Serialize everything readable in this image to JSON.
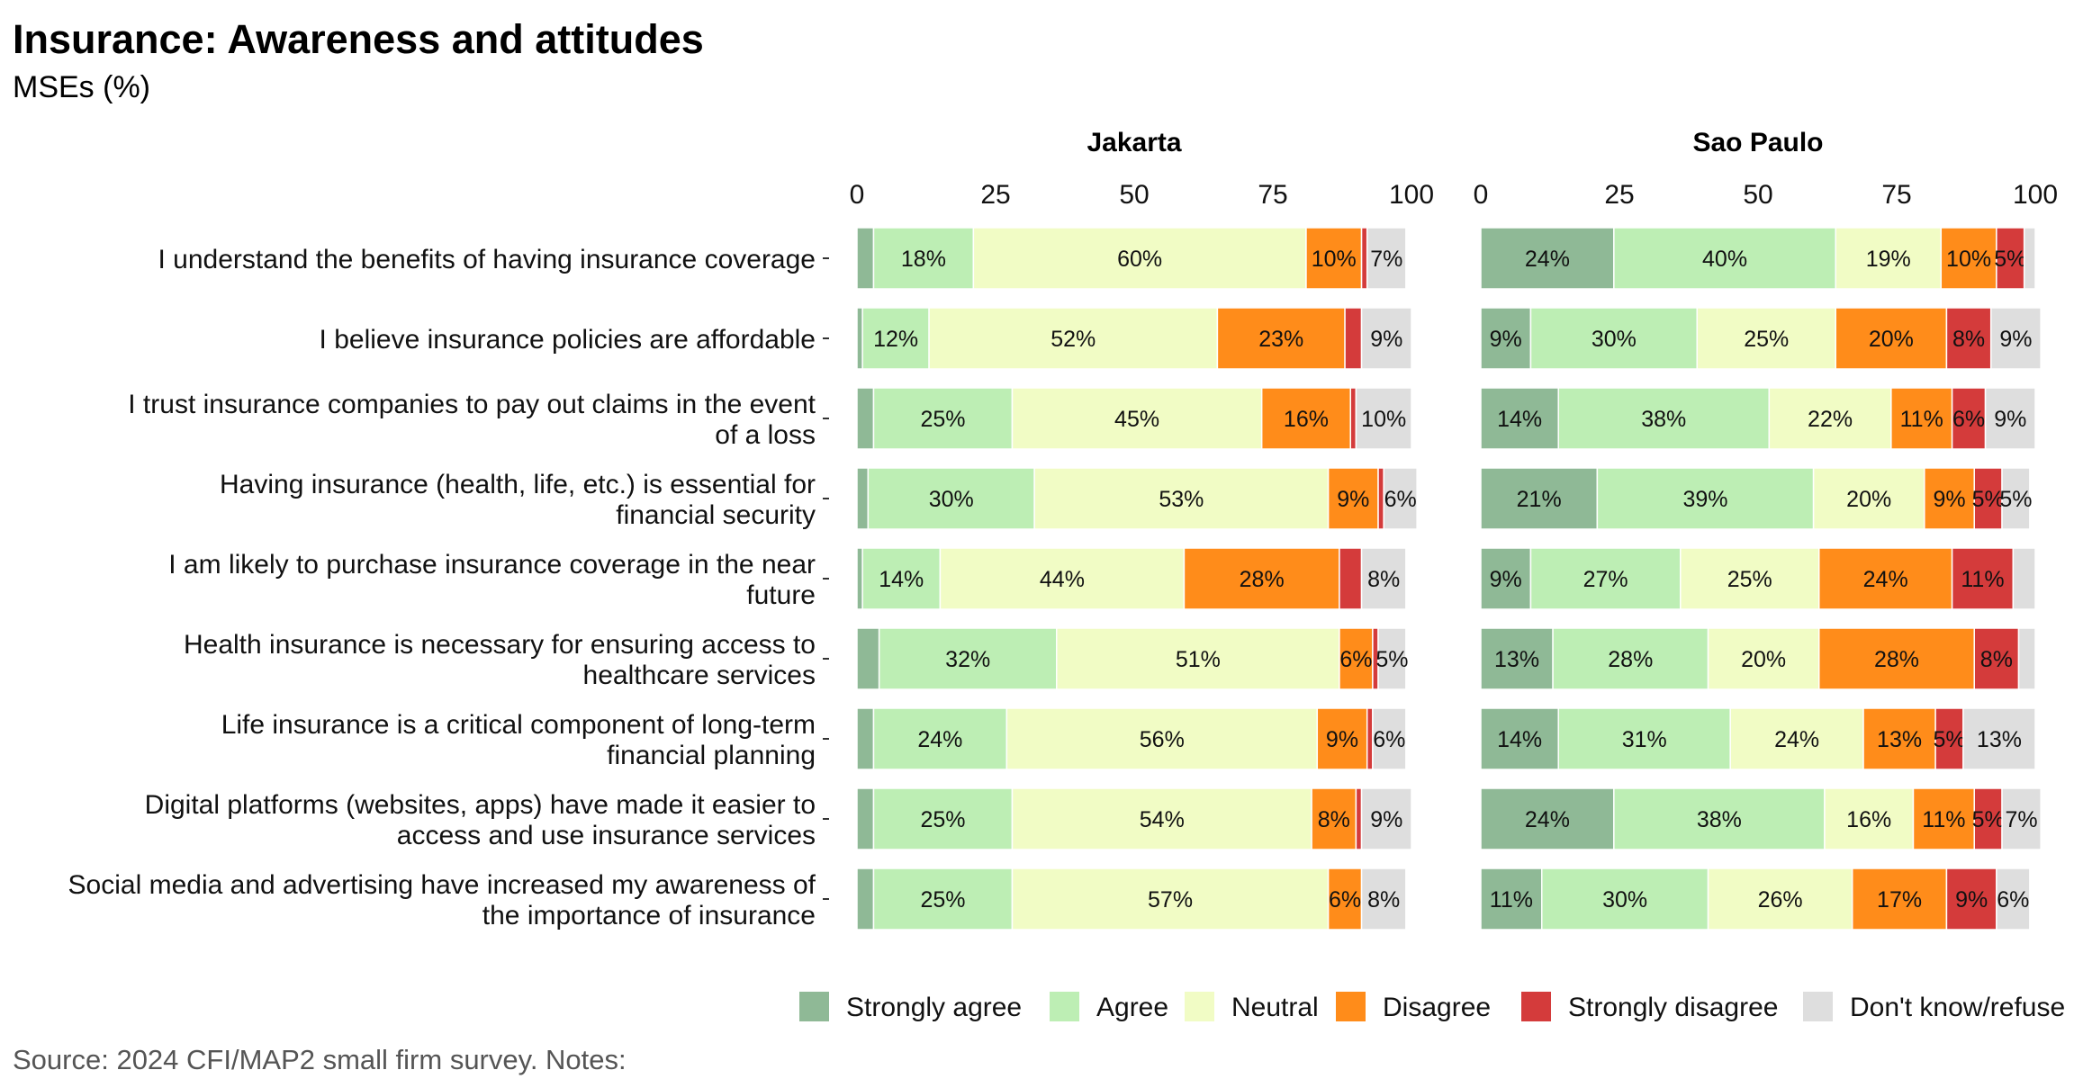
{
  "title": "Insurance: Awareness and attitudes",
  "subtitle": "MSEs (%)",
  "caption": "Source: 2024 CFI/MAP2 small firm survey. Notes:",
  "chart_data": {
    "type": "bar",
    "orientation": "horizontal-stacked",
    "xlim": [
      0,
      100
    ],
    "xticks": [
      0,
      25,
      50,
      75,
      100
    ],
    "legend_position": "bottom",
    "categories": [
      "I understand the benefits of having insurance coverage",
      "I believe insurance policies are affordable",
      "I trust insurance companies to pay out claims in the event of a loss",
      "Having insurance (health, life, etc.) is essential for financial security",
      "I am likely to purchase insurance coverage in the near future",
      "Health insurance is necessary for ensuring access to healthcare services",
      "Life insurance is a critical component of long-term financial planning",
      "Digital platforms (websites, apps) have made it easier to access and use insurance services",
      "Social media and advertising have increased my awareness of the importance of insurance"
    ],
    "category_lines": [
      [
        "I understand the benefits of having insurance coverage"
      ],
      [
        "I believe insurance policies are affordable"
      ],
      [
        "I trust insurance companies to pay out claims in the event",
        "of a loss"
      ],
      [
        "Having insurance (health, life, etc.) is essential for",
        "financial security"
      ],
      [
        "I am likely to purchase insurance coverage in the near",
        "future"
      ],
      [
        "Health insurance is necessary for ensuring access to",
        "healthcare services"
      ],
      [
        "Life insurance is a critical component of long-term",
        "financial planning"
      ],
      [
        "Digital platforms (websites, apps) have made it easier to",
        "access and use insurance services"
      ],
      [
        "Social media and advertising have increased my awareness of",
        "the importance of insurance"
      ]
    ],
    "legend": [
      "Strongly agree",
      "Agree",
      "Neutral",
      "Disagree",
      "Strongly disagree",
      "Don't know/refuse"
    ],
    "colors": [
      "#8fb996",
      "#bdeeb4",
      "#f1fcc5",
      "#ff8c1a",
      "#d43b3b",
      "#dedede"
    ],
    "panels": [
      {
        "name": "Jakarta",
        "values": [
          [
            3,
            18,
            60,
            10,
            1,
            7
          ],
          [
            1,
            12,
            52,
            23,
            3,
            9
          ],
          [
            3,
            25,
            45,
            16,
            1,
            10
          ],
          [
            2,
            30,
            53,
            9,
            1,
            6
          ],
          [
            1,
            14,
            44,
            28,
            4,
            8
          ],
          [
            4,
            32,
            51,
            6,
            1,
            5
          ],
          [
            3,
            24,
            56,
            9,
            1,
            6
          ],
          [
            3,
            25,
            54,
            8,
            1,
            9
          ],
          [
            3,
            25,
            57,
            6,
            0,
            8
          ]
        ]
      },
      {
        "name": "Sao Paulo",
        "values": [
          [
            24,
            40,
            19,
            10,
            5,
            2
          ],
          [
            9,
            30,
            25,
            20,
            8,
            9
          ],
          [
            14,
            38,
            22,
            11,
            6,
            9
          ],
          [
            21,
            39,
            20,
            9,
            5,
            5
          ],
          [
            9,
            27,
            25,
            24,
            11,
            4
          ],
          [
            13,
            28,
            20,
            28,
            8,
            3
          ],
          [
            14,
            31,
            24,
            13,
            5,
            13
          ],
          [
            24,
            38,
            16,
            11,
            5,
            7
          ],
          [
            11,
            30,
            26,
            17,
            9,
            6
          ]
        ]
      }
    ]
  }
}
